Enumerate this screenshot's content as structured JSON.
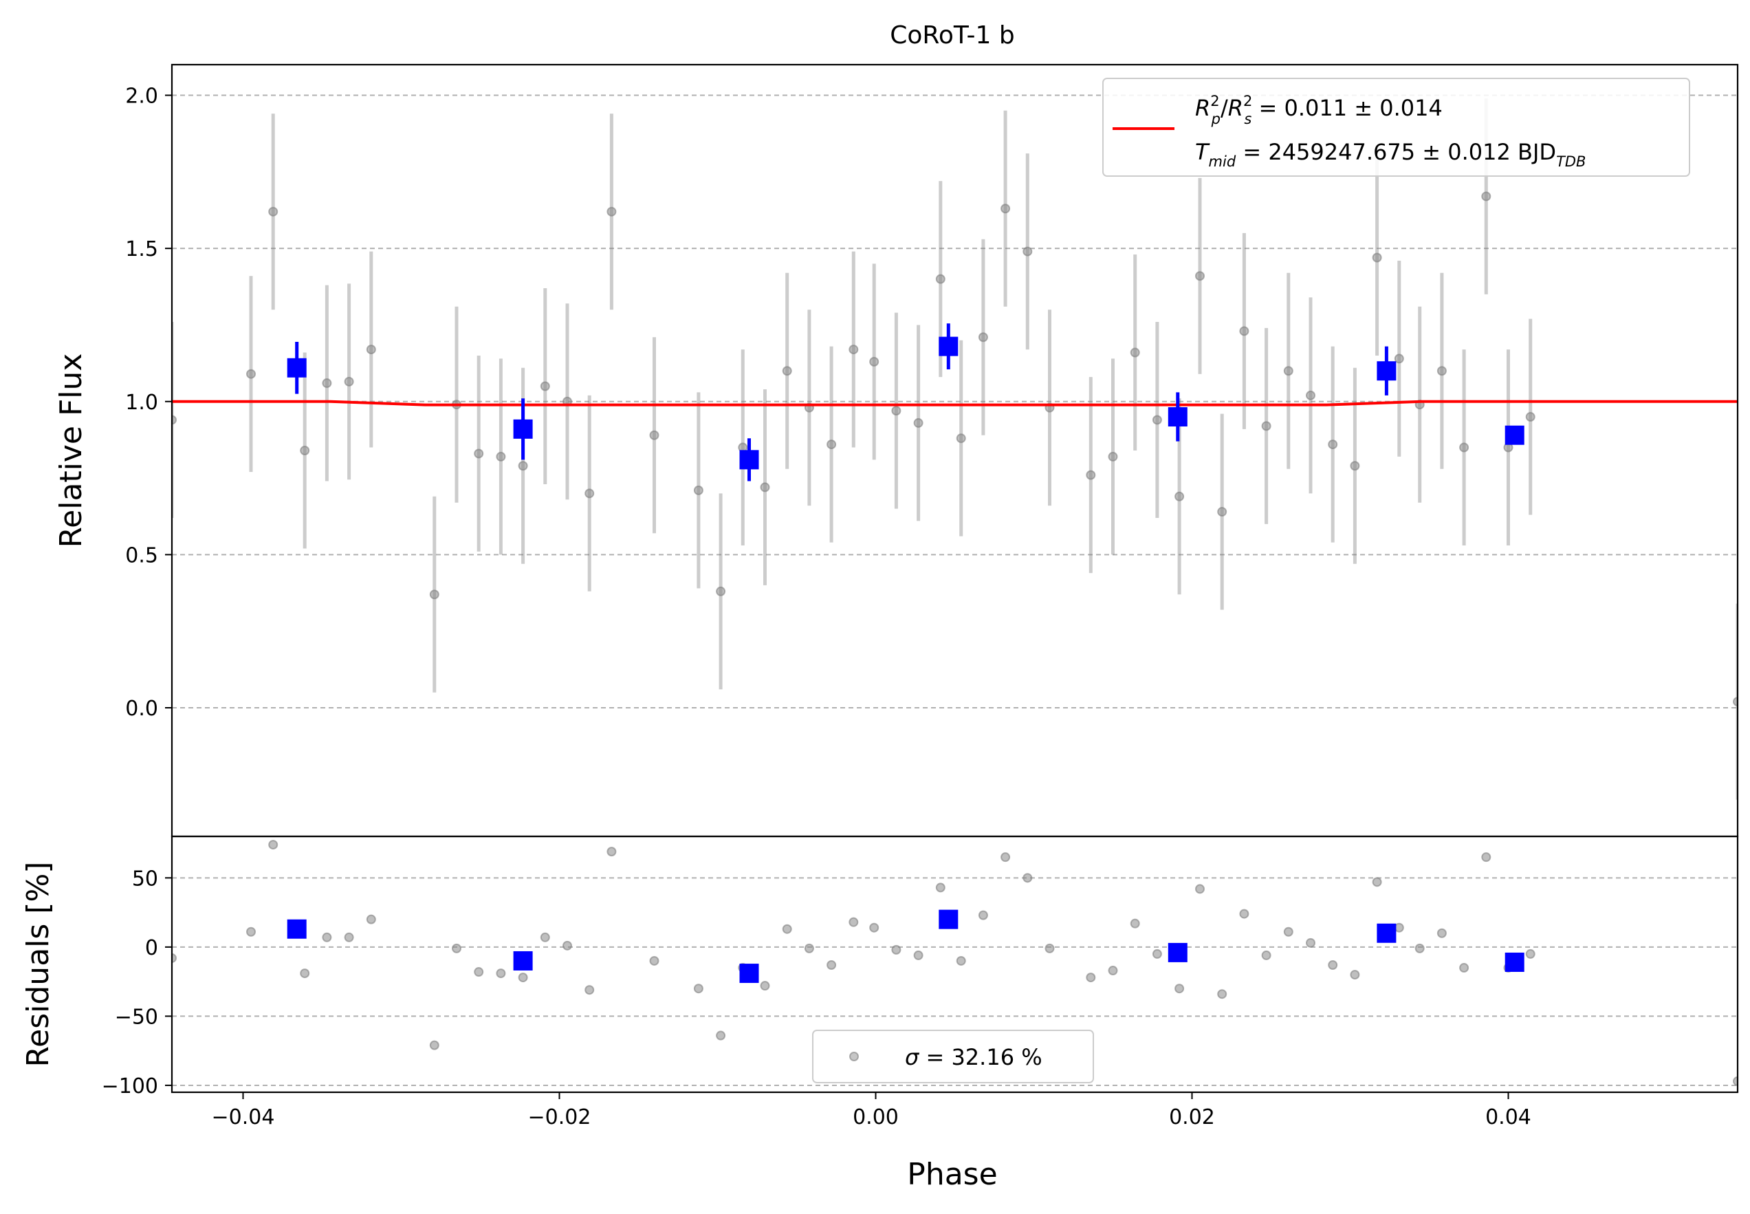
{
  "chart_data": [
    {
      "type": "scatter",
      "title": "CoRoT-1 b",
      "xlabel": "",
      "ylabel": "Relative Flux",
      "xlim": [
        -0.0445,
        0.0545
      ],
      "ylim": [
        -0.42,
        2.1
      ],
      "yticks": [
        0.0,
        0.5,
        1.0,
        1.5,
        2.0
      ],
      "ytick_labels": [
        "0.0",
        "0.5",
        "1.0",
        "1.5",
        "2.0"
      ],
      "grid": "horizontal-dashed",
      "legend": {
        "placement": "top-right",
        "line_color": "#ff0000",
        "line1": {
          "sym": "R",
          "sup1": "2",
          "sub1": "p",
          "slash": "/",
          "sym2": "R",
          "sup2": "2",
          "sub2": "s",
          "text": " = 0.011 ± 0.014"
        },
        "line2": {
          "sym": "T",
          "sub": "mid",
          "text": " = 2459247.675 ± 0.012 BJD",
          "unit_sub": "TDB"
        }
      },
      "model": {
        "color": "#ff0000",
        "x": [
          -0.0445,
          -0.0345,
          -0.0285,
          0.0285,
          0.0345,
          0.0545
        ],
        "y": [
          1.0,
          1.0,
          0.989,
          0.989,
          1.0,
          1.0
        ]
      },
      "raw": {
        "color": "#808080",
        "x": [
          -0.0445,
          -0.0395,
          -0.0381,
          -0.0361,
          -0.0347,
          -0.0333,
          -0.0319,
          -0.0279,
          -0.0265,
          -0.0251,
          -0.0237,
          -0.0223,
          -0.0209,
          -0.0195,
          -0.0181,
          -0.0167,
          -0.014,
          -0.0112,
          -0.0098,
          -0.0084,
          -0.007,
          -0.0056,
          -0.0042,
          -0.0028,
          -0.0014,
          -0.0001,
          0.0013,
          0.0027,
          0.0041,
          0.0054,
          0.0068,
          0.0082,
          0.0096,
          0.011,
          0.0136,
          0.015,
          0.0164,
          0.0178,
          0.0192,
          0.0205,
          0.0219,
          0.0233,
          0.0247,
          0.0261,
          0.0275,
          0.0289,
          0.0303,
          0.0317,
          0.0331,
          0.0344,
          0.0358,
          0.0372,
          0.0386,
          0.04,
          0.0414,
          0.0545
        ],
        "y": [
          0.94,
          1.09,
          1.62,
          0.84,
          1.06,
          1.065,
          1.17,
          0.37,
          0.99,
          0.83,
          0.82,
          0.79,
          1.05,
          1.0,
          0.7,
          1.62,
          0.89,
          0.71,
          0.38,
          0.85,
          0.72,
          1.1,
          0.98,
          0.86,
          1.17,
          1.13,
          0.97,
          0.93,
          1.4,
          0.88,
          1.21,
          1.63,
          1.49,
          0.98,
          0.76,
          0.82,
          1.16,
          0.94,
          0.69,
          1.41,
          0.64,
          1.23,
          0.92,
          1.1,
          1.02,
          0.86,
          0.79,
          1.47,
          1.14,
          0.99,
          1.1,
          0.85,
          1.67,
          0.85,
          0.95,
          0.02
        ],
        "yerr": [
          0.32,
          0.32,
          0.32,
          0.32,
          0.32,
          0.32,
          0.32,
          0.32,
          0.32,
          0.32,
          0.32,
          0.32,
          0.32,
          0.32,
          0.32,
          0.32,
          0.32,
          0.32,
          0.32,
          0.32,
          0.32,
          0.32,
          0.32,
          0.32,
          0.32,
          0.32,
          0.32,
          0.32,
          0.32,
          0.32,
          0.32,
          0.32,
          0.32,
          0.32,
          0.32,
          0.32,
          0.32,
          0.32,
          0.32,
          0.32,
          0.32,
          0.32,
          0.32,
          0.32,
          0.32,
          0.32,
          0.32,
          0.32,
          0.32,
          0.32,
          0.32,
          0.32,
          0.32,
          0.32,
          0.32,
          0.32
        ]
      },
      "binned": {
        "color": "#0000ff",
        "x": [
          -0.0366,
          -0.0223,
          -0.008,
          0.0046,
          0.0191,
          0.0323,
          0.0404
        ],
        "y": [
          1.11,
          0.91,
          0.81,
          1.18,
          0.95,
          1.1,
          0.89
        ],
        "yerr": [
          0.085,
          0.1,
          0.07,
          0.075,
          0.08,
          0.08,
          0.03
        ]
      }
    },
    {
      "type": "scatter",
      "title": "",
      "xlabel": "Phase",
      "ylabel": "Residuals [%]",
      "xlim": [
        -0.0445,
        0.0545
      ],
      "ylim": [
        -105,
        80
      ],
      "xticks": [
        -0.04,
        -0.02,
        0.0,
        0.02,
        0.04
      ],
      "xtick_labels": [
        "−0.04",
        "−0.02",
        "0.00",
        "0.02",
        "0.04"
      ],
      "yticks": [
        50,
        0,
        -50,
        -100
      ],
      "ytick_labels": [
        "50",
        "0",
        "−50",
        "−100"
      ],
      "grid": "horizontal-dashed",
      "legend": {
        "placement": "bottom-center",
        "sym": "σ",
        "text": " = 32.16 %"
      },
      "raw": {
        "color": "#808080",
        "x": [
          -0.0445,
          -0.0395,
          -0.0381,
          -0.0361,
          -0.0347,
          -0.0333,
          -0.0319,
          -0.0279,
          -0.0265,
          -0.0251,
          -0.0237,
          -0.0223,
          -0.0209,
          -0.0195,
          -0.0181,
          -0.0167,
          -0.014,
          -0.0112,
          -0.0098,
          -0.0084,
          -0.007,
          -0.0056,
          -0.0042,
          -0.0028,
          -0.0014,
          -0.0001,
          0.0013,
          0.0027,
          0.0041,
          0.0054,
          0.0068,
          0.0082,
          0.0096,
          0.011,
          0.0136,
          0.015,
          0.0164,
          0.0178,
          0.0192,
          0.0205,
          0.0219,
          0.0233,
          0.0247,
          0.0261,
          0.0275,
          0.0289,
          0.0303,
          0.0317,
          0.0331,
          0.0344,
          0.0358,
          0.0372,
          0.0386,
          0.04,
          0.0414,
          0.0545
        ],
        "y": [
          -8,
          11,
          74,
          -19,
          7,
          7,
          20,
          -71,
          -1,
          -18,
          -19,
          -22,
          7,
          1,
          -31,
          69,
          -10,
          -30,
          -64,
          -15,
          -28,
          13,
          -1,
          -13,
          18,
          14,
          -2,
          -6,
          43,
          -10,
          23,
          65,
          50,
          -1,
          -22,
          -17,
          17,
          -5,
          -30,
          42,
          -34,
          24,
          -6,
          11,
          3,
          -13,
          -20,
          47,
          14,
          -1,
          10,
          -15,
          65,
          -15,
          -5,
          -97
        ]
      },
      "binned": {
        "color": "#0000ff",
        "x": [
          -0.0366,
          -0.0223,
          -0.008,
          0.0046,
          0.0191,
          0.0323,
          0.0404
        ],
        "y": [
          13,
          -10,
          -19,
          20,
          -4,
          10,
          -11
        ]
      }
    }
  ]
}
